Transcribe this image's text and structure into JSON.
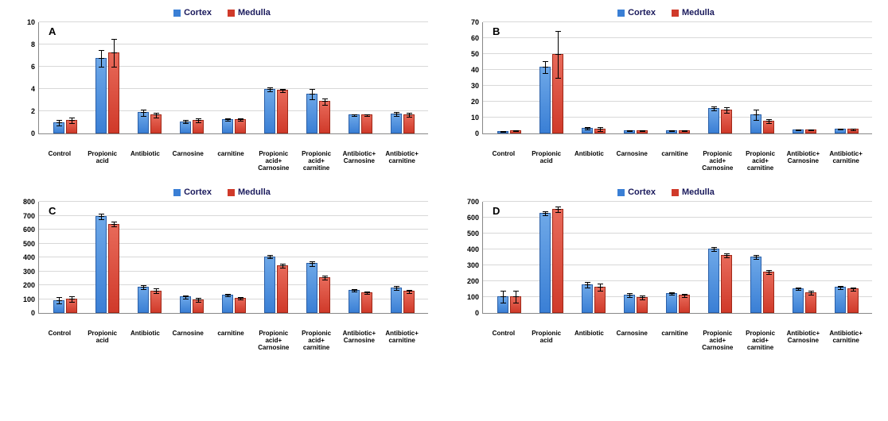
{
  "legend": {
    "cortex_label": "Cortex",
    "medulla_label": "Medulla",
    "cortex_color": "#3a7fd5",
    "medulla_color": "#d03a2a"
  },
  "colors": {
    "grid": "#d8d8d8",
    "axis": "#888888",
    "background": "#ffffff",
    "text": "#000000"
  },
  "categories": [
    "Control",
    "Propionic acid",
    "Antibiotic",
    "Carnosine",
    "carnitine",
    "Propionic acid+ Carnosine",
    "Propionic acid+ carnitine",
    "Antibiotic+ Carnosine",
    "Antibiotic+ carnitine"
  ],
  "panels": {
    "A": {
      "label": "A",
      "ymax": 10,
      "yticks": [
        0,
        2,
        4,
        6,
        8,
        10
      ],
      "cortex": [
        1.0,
        6.8,
        1.9,
        1.1,
        1.3,
        4.0,
        3.6,
        1.7,
        1.8
      ],
      "medulla": [
        1.2,
        7.3,
        1.7,
        1.2,
        1.3,
        3.9,
        2.9,
        1.7,
        1.7
      ],
      "err_c": [
        0.3,
        0.8,
        0.3,
        0.2,
        0.15,
        0.2,
        0.5,
        0.1,
        0.2
      ],
      "err_m": [
        0.3,
        1.3,
        0.25,
        0.2,
        0.15,
        0.15,
        0.3,
        0.1,
        0.2
      ]
    },
    "B": {
      "label": "B",
      "ymax": 70,
      "yticks": [
        0,
        10,
        20,
        30,
        40,
        50,
        60,
        70
      ],
      "cortex": [
        1.5,
        42,
        3.5,
        1.8,
        1.8,
        16,
        12,
        2.5,
        3.0
      ],
      "medulla": [
        1.8,
        50,
        3.0,
        1.8,
        1.8,
        15,
        8,
        2.5,
        2.8
      ],
      "err_c": [
        0.5,
        4,
        1.0,
        0.5,
        0.4,
        1.5,
        3.5,
        0.5,
        0.6
      ],
      "err_m": [
        0.5,
        15,
        1.5,
        0.5,
        0.4,
        2.0,
        1.5,
        0.5,
        0.6
      ]
    },
    "C": {
      "label": "C",
      "ymax": 800,
      "yticks": [
        0,
        100,
        200,
        300,
        400,
        500,
        600,
        700,
        800
      ],
      "cortex": [
        95,
        700,
        190,
        120,
        135,
        410,
        360,
        170,
        185
      ],
      "medulla": [
        105,
        645,
        165,
        100,
        110,
        345,
        260,
        150,
        160
      ],
      "err_c": [
        25,
        25,
        18,
        15,
        10,
        15,
        20,
        12,
        15
      ],
      "err_m": [
        25,
        20,
        18,
        15,
        12,
        15,
        15,
        12,
        15
      ]
    },
    "D": {
      "label": "D",
      "ymax": 700,
      "yticks": [
        0,
        100,
        200,
        300,
        400,
        500,
        600,
        700
      ],
      "cortex": [
        105,
        630,
        180,
        115,
        125,
        405,
        355,
        155,
        165
      ],
      "medulla": [
        105,
        655,
        165,
        100,
        115,
        365,
        260,
        130,
        155
      ],
      "err_c": [
        40,
        15,
        20,
        15,
        10,
        15,
        15,
        10,
        12
      ],
      "err_m": [
        40,
        20,
        25,
        15,
        12,
        15,
        15,
        15,
        12
      ]
    }
  }
}
